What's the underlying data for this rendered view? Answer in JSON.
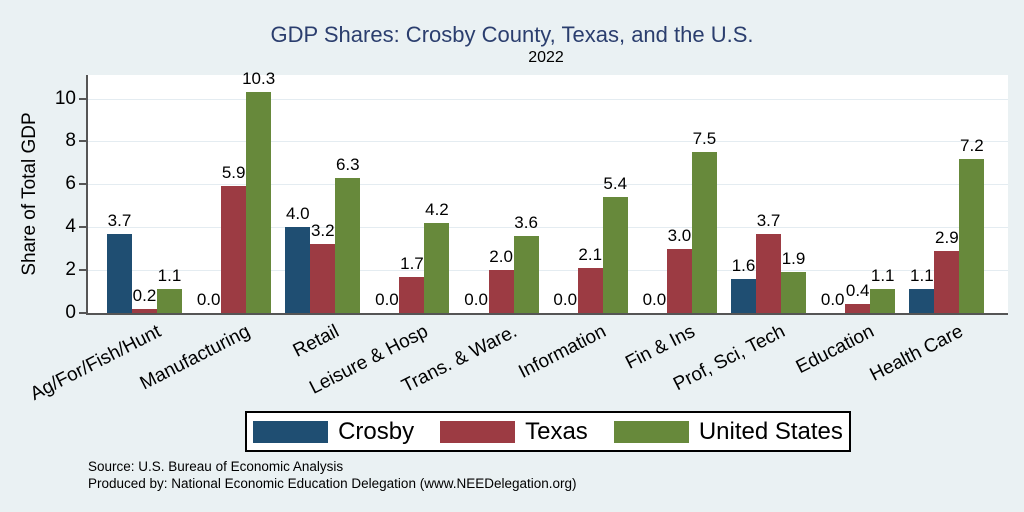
{
  "chart_data": {
    "type": "bar",
    "title": "GDP Shares: Crosby County, Texas, and the U.S.",
    "subtitle": "2022",
    "ylabel": "Share of Total GDP",
    "xlabel": "",
    "ylim": [
      0,
      11.1
    ],
    "yticks": [
      0,
      2,
      4,
      6,
      8,
      10
    ],
    "grid": true,
    "legend_position": "bottom",
    "value_label_decimals": 1,
    "categories": [
      "Ag/For/Fish/Hunt",
      "Manufacturing",
      "Retail",
      "Leisure & Hosp",
      "Trans. & Ware.",
      "Information",
      "Fin & Ins",
      "Prof, Sci, Tech",
      "Education",
      "Health Care"
    ],
    "series": [
      {
        "name": "Crosby",
        "color": "#1f4e72",
        "values": [
          3.7,
          0.0,
          4.0,
          0.0,
          0.0,
          0.0,
          0.0,
          1.6,
          0.0,
          1.1
        ]
      },
      {
        "name": "Texas",
        "color": "#9c3b43",
        "values": [
          0.2,
          5.9,
          3.2,
          1.7,
          2.0,
          2.1,
          3.0,
          3.7,
          0.4,
          2.9
        ]
      },
      {
        "name": "United States",
        "color": "#67893b",
        "values": [
          1.1,
          10.3,
          6.3,
          4.2,
          3.6,
          5.4,
          7.5,
          1.9,
          1.1,
          7.2
        ]
      }
    ]
  },
  "notes": {
    "source": "Source: U.S. Bureau of Economic Analysis",
    "produced_by": "Produced by: National Economic Education Delegation (www.NEEDelegation.org)"
  },
  "colors": {
    "background": "#eaf1f3",
    "plot_background": "#ffffff",
    "gridline": "#e4ecf1",
    "axis_line": "#555555",
    "title_text": "#2b3e6e",
    "body_text": "#000000"
  }
}
